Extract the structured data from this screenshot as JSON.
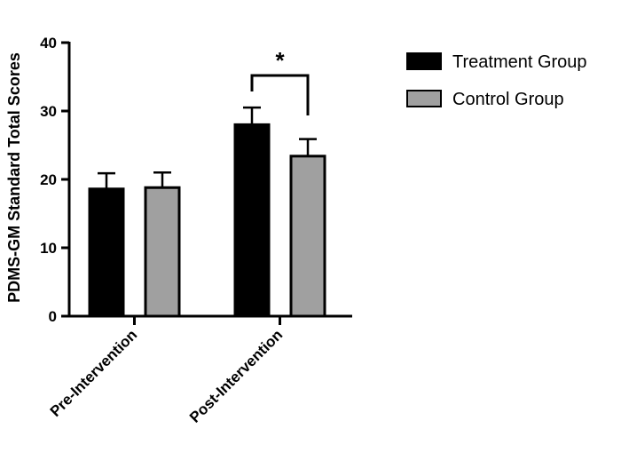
{
  "chart_data": {
    "type": "bar",
    "title": "",
    "xlabel": "",
    "ylabel": "PDMS-GM Standard Total Scores",
    "ylim": [
      0,
      40
    ],
    "yticks": [
      0,
      10,
      20,
      30,
      40
    ],
    "grid": false,
    "legend_position": "top-right",
    "categories": [
      "Pre-Intervention",
      "Post-Intervention"
    ],
    "series": [
      {
        "name": "Treatment Group",
        "color": "#000000",
        "values": [
          18.6,
          28.0
        ],
        "errors": [
          2.3,
          2.5
        ]
      },
      {
        "name": "Control Group",
        "color": "#a0a0a0",
        "values": [
          18.8,
          23.4
        ],
        "errors": [
          2.2,
          2.5
        ]
      }
    ],
    "annotations": [
      {
        "text": "*",
        "category": "Post-Intervention",
        "type": "significance-bracket"
      }
    ]
  }
}
